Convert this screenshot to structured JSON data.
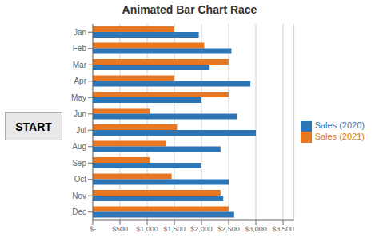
{
  "chart_data": {
    "type": "bar",
    "title": "Animated Bar Chart Race",
    "orientation": "horizontal",
    "categories": [
      "Jan",
      "Feb",
      "Mar",
      "Apr",
      "May",
      "Jun",
      "Jul",
      "Aug",
      "Sep",
      "Oct",
      "Nov",
      "Dec"
    ],
    "series": [
      {
        "name": "Sales (2021)",
        "color": "#E87722",
        "values": [
          1500,
          2050,
          2500,
          1500,
          2500,
          1050,
          1550,
          1350,
          1050,
          1450,
          2350,
          2500
        ]
      },
      {
        "name": "Sales (2020)",
        "color": "#2E75B6",
        "values": [
          1950,
          2550,
          2150,
          2900,
          2000,
          2650,
          3000,
          2350,
          2000,
          2500,
          2400,
          2600
        ]
      }
    ],
    "xlim": [
      0,
      3700
    ],
    "xticks": [
      {
        "value": 0,
        "label": "$-"
      },
      {
        "value": 500,
        "label": "$500"
      },
      {
        "value": 1000,
        "label": "$1,000"
      },
      {
        "value": 1500,
        "label": "$1,500"
      },
      {
        "value": 2000,
        "label": "$2,000"
      },
      {
        "value": 2500,
        "label": "$2,500"
      },
      {
        "value": 3000,
        "label": "$3,000"
      },
      {
        "value": 3500,
        "label": "$3,500"
      }
    ],
    "grid": true,
    "legend": "right",
    "annotations": [
      "START"
    ]
  }
}
